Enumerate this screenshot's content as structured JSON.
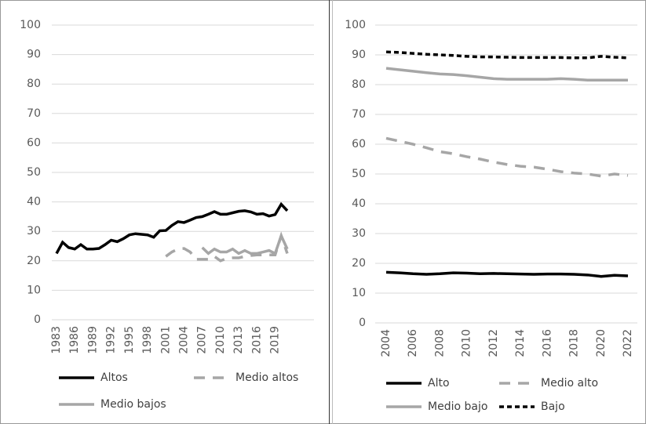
{
  "chart_data": [
    {
      "type": "line",
      "x": [
        1983,
        1984,
        1985,
        1986,
        1987,
        1988,
        1989,
        1990,
        1991,
        1992,
        1993,
        1994,
        1995,
        1996,
        1997,
        1998,
        1999,
        2000,
        2001,
        2002,
        2003,
        2004,
        2005,
        2006,
        2007,
        2008,
        2009,
        2010,
        2011,
        2012,
        2013,
        2014,
        2015,
        2016,
        2017,
        2018,
        2019,
        2020,
        2021
      ],
      "xlim": [
        1983,
        2021
      ],
      "xticks": [
        1983,
        1986,
        1989,
        1992,
        1995,
        1998,
        2001,
        2004,
        2007,
        2010,
        2013,
        2016,
        2019
      ],
      "ylim": [
        0,
        100
      ],
      "yticks": [
        0,
        10,
        20,
        30,
        40,
        50,
        60,
        70,
        80,
        90,
        100
      ],
      "grid": true,
      "series": [
        {
          "name": "Altos",
          "color": "#000000",
          "dash": "solid",
          "values": [
            22.5,
            26.3,
            24.5,
            24,
            25.5,
            24,
            24,
            24.2,
            25.5,
            27,
            26.5,
            27.5,
            28.8,
            29.2,
            29,
            28.8,
            28,
            30.2,
            30.3,
            32,
            33.3,
            33,
            33.8,
            34.7,
            35,
            35.8,
            36.7,
            35.8,
            35.8,
            36.3,
            36.8,
            37,
            36.6,
            35.8,
            36,
            35.2,
            35.7,
            39.2,
            37
          ]
        },
        {
          "name": "Medio altos",
          "color": "#a6a6a6",
          "dash": "dashed",
          "values": [
            null,
            null,
            null,
            null,
            null,
            null,
            null,
            null,
            null,
            null,
            null,
            null,
            null,
            null,
            null,
            null,
            null,
            null,
            21.5,
            23,
            24,
            24.2,
            23,
            20.5,
            20.5,
            20.5,
            21.5,
            20,
            20.8,
            21,
            21,
            21.5,
            21.8,
            22,
            22,
            22,
            22,
            28.5,
            22.5
          ]
        },
        {
          "name": "Medio bajos",
          "color": "#a6a6a6",
          "dash": "solid",
          "values": [
            null,
            null,
            null,
            null,
            null,
            null,
            null,
            null,
            null,
            null,
            null,
            null,
            null,
            null,
            null,
            null,
            null,
            null,
            null,
            null,
            null,
            null,
            null,
            null,
            24.5,
            22.5,
            24,
            23,
            23,
            24,
            22.5,
            23.5,
            22.5,
            22.5,
            23,
            23.5,
            22.5,
            28.5,
            24
          ]
        }
      ]
    },
    {
      "type": "line",
      "x": [
        2004,
        2005,
        2006,
        2007,
        2008,
        2009,
        2010,
        2011,
        2012,
        2013,
        2014,
        2015,
        2016,
        2017,
        2018,
        2019,
        2020,
        2021,
        2022
      ],
      "xlim": [
        2004,
        2022
      ],
      "xticks": [
        2004,
        2006,
        2008,
        2010,
        2012,
        2014,
        2016,
        2018,
        2020,
        2022
      ],
      "ylim": [
        0,
        100
      ],
      "yticks": [
        0,
        10,
        20,
        30,
        40,
        50,
        60,
        70,
        80,
        90,
        100
      ],
      "grid": true,
      "series": [
        {
          "name": "Alto",
          "color": "#000000",
          "dash": "solid",
          "values": [
            17,
            16.8,
            16.5,
            16.3,
            16.5,
            16.8,
            16.7,
            16.5,
            16.6,
            16.5,
            16.4,
            16.3,
            16.4,
            16.4,
            16.3,
            16.1,
            15.6,
            16,
            15.8
          ]
        },
        {
          "name": "Medio alto",
          "color": "#a6a6a6",
          "dash": "dashed",
          "values": [
            62,
            61,
            60,
            58.8,
            57.5,
            56.8,
            55.8,
            55,
            54,
            53.2,
            52.6,
            52.3,
            51.6,
            50.8,
            50.3,
            50,
            49.3,
            50,
            49.5
          ]
        },
        {
          "name": "Medio bajo",
          "color": "#a6a6a6",
          "dash": "solid",
          "values": [
            85.5,
            85,
            84.5,
            84,
            83.6,
            83.4,
            83,
            82.5,
            82,
            81.8,
            81.8,
            81.8,
            81.8,
            82,
            81.8,
            81.5,
            81.5,
            81.5,
            81.5
          ]
        },
        {
          "name": "Bajo",
          "color": "#000000",
          "dash": "dotted",
          "values": [
            91,
            90.8,
            90.5,
            90.2,
            90,
            89.8,
            89.5,
            89.3,
            89.3,
            89.2,
            89.1,
            89.1,
            89.1,
            89.1,
            89,
            89,
            89.5,
            89.2,
            89
          ]
        }
      ]
    }
  ]
}
